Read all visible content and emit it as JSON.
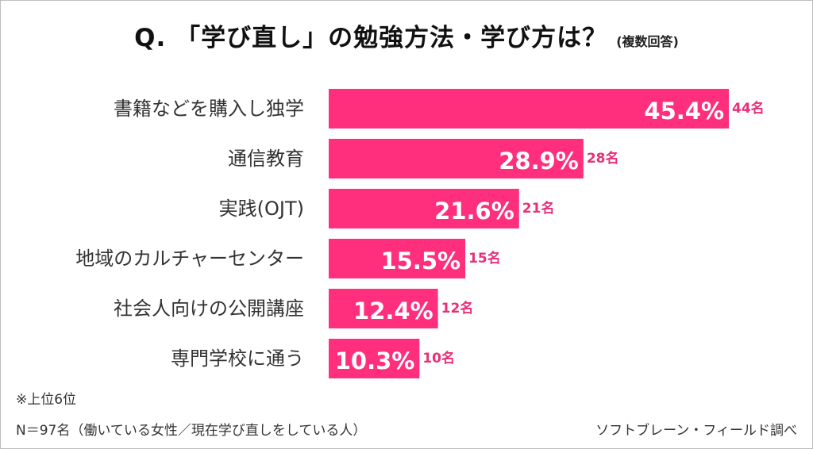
{
  "header": {
    "title": "Q. 「学び直し」の勉強方法・学び方は？",
    "subtitle": "(複数回答)"
  },
  "colors": {
    "bar": "#ff2f7e",
    "count_text": "#e8307a"
  },
  "chart_data": {
    "type": "bar",
    "orientation": "horizontal",
    "categories": [
      "書籍などを購入し独学",
      "通信教育",
      "実践(OJT)",
      "地域のカルチャーセンター",
      "社会人向けの公開講座",
      "専門学校に通う"
    ],
    "values": [
      45.4,
      28.9,
      21.6,
      15.5,
      12.4,
      10.3
    ],
    "value_labels": [
      "45.4%",
      "28.9%",
      "21.6%",
      "15.5%",
      "12.4%",
      "10.3%"
    ],
    "counts": [
      "44名",
      "28名",
      "21名",
      "15名",
      "12名",
      "10名"
    ],
    "xlim": [
      0,
      45.4
    ],
    "grid": false
  },
  "footer": {
    "note": "※上位6位",
    "sample": "N＝97名（働いている女性／現在学び直しをしている人）",
    "source": "ソフトブレーン・フィールド調べ"
  }
}
